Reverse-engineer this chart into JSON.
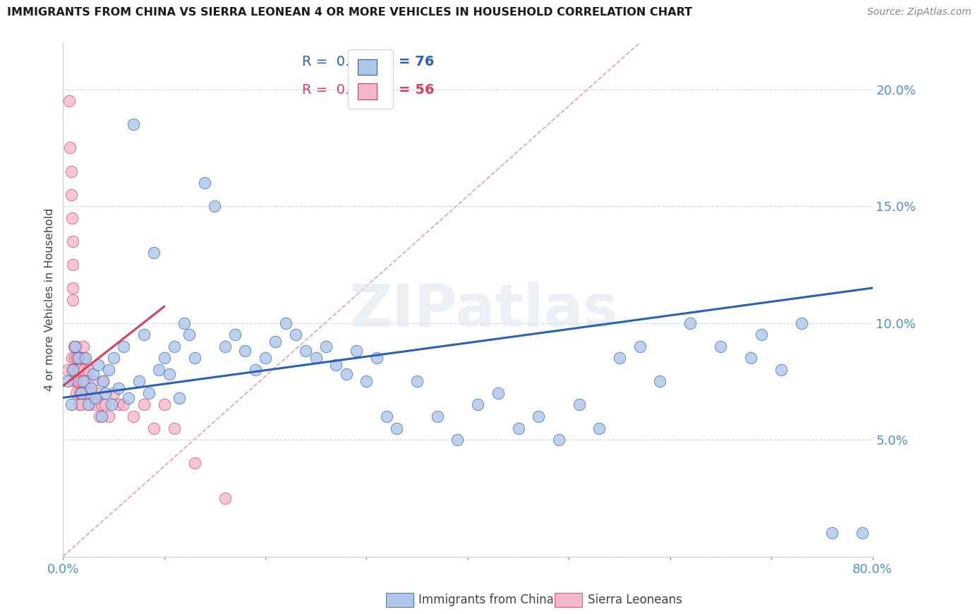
{
  "title": "IMMIGRANTS FROM CHINA VS SIERRA LEONEAN 4 OR MORE VEHICLES IN HOUSEHOLD CORRELATION CHART",
  "source": "Source: ZipAtlas.com",
  "ylabel": "4 or more Vehicles in Household",
  "legend_label_blue": "Immigrants from China",
  "legend_label_pink": "Sierra Leoneans",
  "R_blue": 0.209,
  "N_blue": 76,
  "R_pink": 0.107,
  "N_pink": 56,
  "xlim": [
    0.0,
    0.8
  ],
  "ylim": [
    0.0,
    0.22
  ],
  "blue_color": "#aec6e8",
  "pink_color": "#f4b8c8",
  "line_blue_color": "#2b5fbc",
  "line_pink_color": "#d94060",
  "diag_color": "#e8a0b0",
  "axis_color": "#5090d0",
  "grid_color": "#c8d8e8",
  "watermark": "ZIPatlas",
  "blue_scatter_x": [
    0.005,
    0.008,
    0.01,
    0.012,
    0.015,
    0.018,
    0.02,
    0.022,
    0.025,
    0.028,
    0.03,
    0.032,
    0.035,
    0.038,
    0.04,
    0.042,
    0.045,
    0.048,
    0.05,
    0.055,
    0.06,
    0.065,
    0.07,
    0.075,
    0.08,
    0.085,
    0.09,
    0.095,
    0.1,
    0.105,
    0.11,
    0.115,
    0.12,
    0.125,
    0.13,
    0.14,
    0.15,
    0.16,
    0.17,
    0.18,
    0.19,
    0.2,
    0.21,
    0.22,
    0.23,
    0.24,
    0.25,
    0.26,
    0.27,
    0.28,
    0.29,
    0.3,
    0.31,
    0.32,
    0.33,
    0.35,
    0.37,
    0.39,
    0.41,
    0.43,
    0.45,
    0.47,
    0.49,
    0.51,
    0.53,
    0.55,
    0.57,
    0.59,
    0.62,
    0.65,
    0.68,
    0.69,
    0.71,
    0.73,
    0.76,
    0.79
  ],
  "blue_scatter_y": [
    0.075,
    0.065,
    0.08,
    0.09,
    0.085,
    0.07,
    0.075,
    0.085,
    0.065,
    0.072,
    0.078,
    0.068,
    0.082,
    0.06,
    0.075,
    0.07,
    0.08,
    0.065,
    0.085,
    0.072,
    0.09,
    0.068,
    0.185,
    0.075,
    0.095,
    0.07,
    0.13,
    0.08,
    0.085,
    0.078,
    0.09,
    0.068,
    0.1,
    0.095,
    0.085,
    0.16,
    0.15,
    0.09,
    0.095,
    0.088,
    0.08,
    0.085,
    0.092,
    0.1,
    0.095,
    0.088,
    0.085,
    0.09,
    0.082,
    0.078,
    0.088,
    0.075,
    0.085,
    0.06,
    0.055,
    0.075,
    0.06,
    0.05,
    0.065,
    0.07,
    0.055,
    0.06,
    0.05,
    0.065,
    0.055,
    0.085,
    0.09,
    0.075,
    0.1,
    0.09,
    0.085,
    0.095,
    0.08,
    0.1,
    0.01,
    0.01
  ],
  "pink_scatter_x": [
    0.005,
    0.006,
    0.007,
    0.008,
    0.008,
    0.009,
    0.009,
    0.01,
    0.01,
    0.01,
    0.01,
    0.01,
    0.011,
    0.011,
    0.012,
    0.012,
    0.013,
    0.013,
    0.014,
    0.014,
    0.015,
    0.015,
    0.016,
    0.016,
    0.017,
    0.017,
    0.018,
    0.018,
    0.019,
    0.02,
    0.02,
    0.021,
    0.022,
    0.023,
    0.024,
    0.025,
    0.026,
    0.028,
    0.03,
    0.032,
    0.034,
    0.036,
    0.038,
    0.04,
    0.042,
    0.045,
    0.05,
    0.055,
    0.06,
    0.07,
    0.08,
    0.09,
    0.1,
    0.11,
    0.13,
    0.16
  ],
  "pink_scatter_y": [
    0.08,
    0.195,
    0.175,
    0.165,
    0.155,
    0.085,
    0.145,
    0.135,
    0.125,
    0.115,
    0.11,
    0.08,
    0.09,
    0.075,
    0.085,
    0.08,
    0.09,
    0.07,
    0.085,
    0.075,
    0.08,
    0.075,
    0.085,
    0.065,
    0.07,
    0.08,
    0.075,
    0.065,
    0.07,
    0.09,
    0.085,
    0.08,
    0.075,
    0.07,
    0.075,
    0.08,
    0.065,
    0.07,
    0.075,
    0.065,
    0.07,
    0.06,
    0.065,
    0.075,
    0.065,
    0.06,
    0.07,
    0.065,
    0.065,
    0.06,
    0.065,
    0.055,
    0.065,
    0.055,
    0.04,
    0.025
  ],
  "blue_line_x": [
    0.0,
    0.8
  ],
  "blue_line_y": [
    0.068,
    0.115
  ],
  "pink_line_x": [
    0.0,
    0.1
  ],
  "pink_line_y": [
    0.073,
    0.107
  ],
  "diag_line_x": [
    0.0,
    0.57
  ],
  "diag_line_y": [
    0.0,
    0.22
  ]
}
